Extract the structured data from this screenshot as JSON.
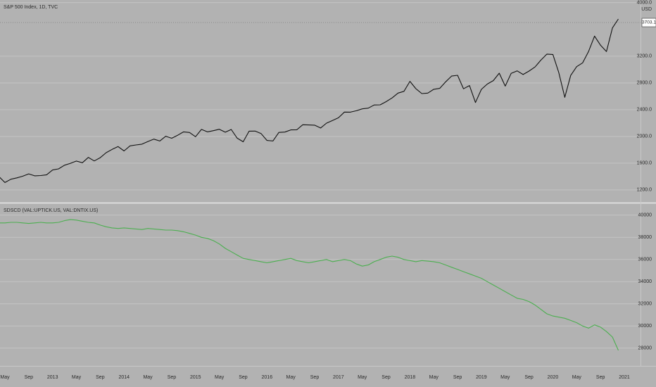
{
  "chart_data": {
    "type": "line",
    "categories": [
      null,
      "May",
      null,
      null,
      null,
      "Sep",
      null,
      null,
      null,
      "2013",
      null,
      null,
      null,
      "May",
      null,
      null,
      null,
      "Sep",
      null,
      null,
      null,
      "2014",
      null,
      null,
      null,
      "May",
      null,
      null,
      null,
      "Sep",
      null,
      null,
      null,
      "2015",
      null,
      null,
      null,
      "May",
      null,
      null,
      null,
      "Sep",
      null,
      null,
      null,
      "2016",
      null,
      null,
      null,
      "May",
      null,
      null,
      null,
      "Sep",
      null,
      null,
      null,
      "2017",
      null,
      null,
      null,
      "May",
      null,
      null,
      null,
      "Sep",
      null,
      null,
      null,
      "2018",
      null,
      null,
      null,
      "May",
      null,
      null,
      null,
      "Sep",
      null,
      null,
      null,
      "2019",
      null,
      null,
      null,
      "May",
      null,
      null,
      null,
      "Sep",
      null,
      null,
      null,
      "2020",
      null,
      null,
      null,
      "May",
      null,
      null,
      null,
      "Sep",
      null,
      null,
      null,
      "2021"
    ],
    "panes": [
      {
        "title": "S&P 500 Index, 1D, TVC",
        "y_unit": "USD",
        "last_price": 3703.1,
        "ylim": [
          1020,
          4040
        ],
        "yticks": [
          {
            "value": 1200,
            "label": "1200.0"
          },
          {
            "value": 1600,
            "label": "1600.0"
          },
          {
            "value": 2000,
            "label": "2000.0"
          },
          {
            "value": 2400,
            "label": "2400.0"
          },
          {
            "value": 2800,
            "label": "2800.0"
          },
          {
            "value": 3200,
            "label": "3200.0"
          },
          {
            "value": 4000,
            "label": "4000.0"
          }
        ],
        "series": [
          {
            "color": "#111111",
            "values": [
              1400,
              1310,
              1360,
              1380,
              1405,
              1440,
              1410,
              1415,
              1426,
              1498,
              1515,
              1569,
              1598,
              1631,
              1606,
              1686,
              1633,
              1682,
              1757,
              1806,
              1848,
              1783,
              1859,
              1872,
              1884,
              1924,
              1960,
              1931,
              2003,
              1972,
              2018,
              2068,
              2059,
              1995,
              2105,
              2068,
              2086,
              2107,
              2063,
              2104,
              1973,
              1920,
              2079,
              2080,
              2044,
              1940,
              1932,
              2060,
              2065,
              2097,
              2099,
              2174,
              2171,
              2168,
              2126,
              2199,
              2239,
              2279,
              2364,
              2363,
              2384,
              2412,
              2423,
              2470,
              2472,
              2519,
              2575,
              2648,
              2674,
              2824,
              2714,
              2641,
              2648,
              2705,
              2718,
              2816,
              2902,
              2914,
              2712,
              2760,
              2507,
              2704,
              2784,
              2834,
              2946,
              2752,
              2942,
              2980,
              2926,
              2977,
              3038,
              3141,
              3231,
              3226,
              2954,
              2585,
              2912,
              3044,
              3100,
              3271,
              3500,
              3363,
              3270,
              3622,
              3756,
              null
            ]
          }
        ]
      },
      {
        "title": "SDSCD (VAL:UPTICK.US, VAL:DNTIX.US)",
        "ylim": [
          26400,
          41000
        ],
        "yticks": [
          28000,
          30000,
          32000,
          34000,
          36000,
          38000,
          40000
        ],
        "series": [
          {
            "color": "#4caf50",
            "values": [
              39300,
              39300,
              39350,
              39350,
              39300,
              39250,
              39300,
              39350,
              39300,
              39300,
              39350,
              39500,
              39600,
              39550,
              39450,
              39350,
              39300,
              39100,
              38950,
              38850,
              38800,
              38850,
              38800,
              38750,
              38700,
              38800,
              38750,
              38700,
              38650,
              38650,
              38600,
              38500,
              38350,
              38200,
              38000,
              37900,
              37700,
              37400,
              37000,
              36700,
              36400,
              36100,
              36000,
              35900,
              35800,
              35700,
              35800,
              35900,
              36000,
              36100,
              35900,
              35800,
              35700,
              35800,
              35900,
              36000,
              35800,
              35900,
              36000,
              35900,
              35600,
              35400,
              35500,
              35800,
              36000,
              36200,
              36300,
              36200,
              36000,
              35900,
              35800,
              35900,
              35850,
              35800,
              35700,
              35500,
              35300,
              35100,
              34900,
              34700,
              34500,
              34300,
              34000,
              33700,
              33400,
              33100,
              32800,
              32500,
              32400,
              32200,
              31900,
              31500,
              31100,
              30900,
              30800,
              30700,
              30500,
              30300,
              30000,
              29800,
              30100,
              29900,
              29500,
              29000,
              27800,
              null
            ]
          }
        ]
      }
    ]
  }
}
